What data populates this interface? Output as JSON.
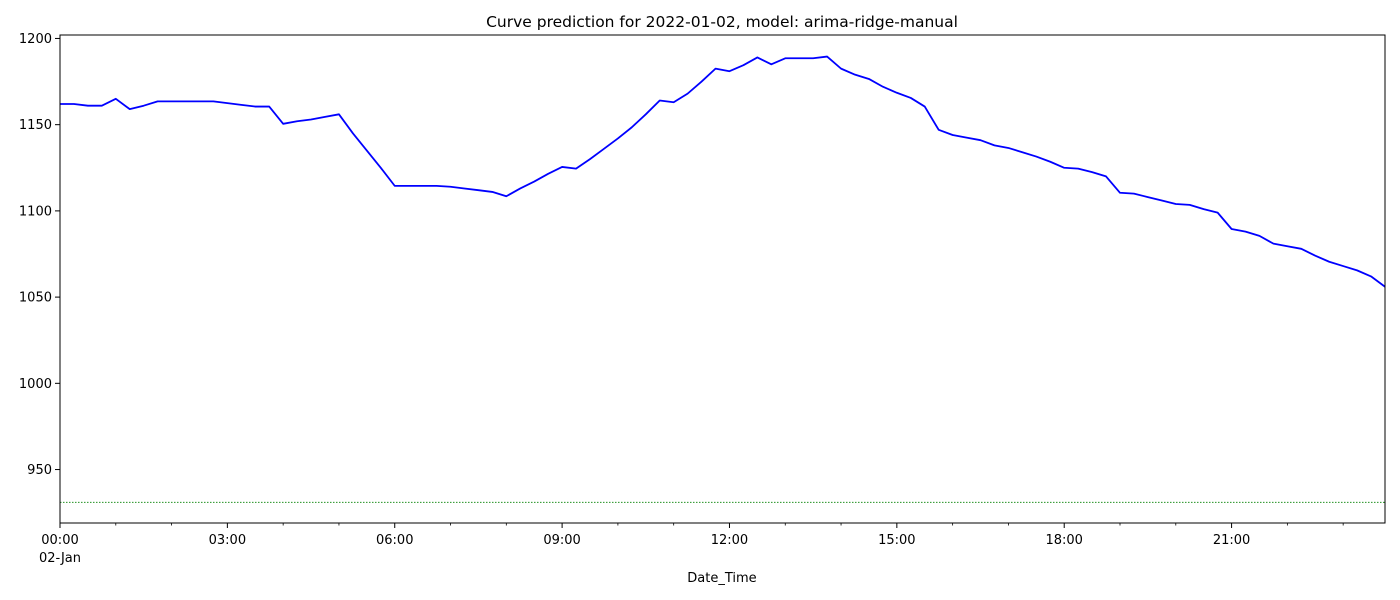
{
  "chart_data": {
    "type": "line",
    "title": "Curve prediction for 2022-01-02, model: arima-ridge-manual",
    "xlabel": "Date_Time",
    "ylabel": "",
    "date_label": "02-Jan",
    "x_ticks": [
      "00:00",
      "03:00",
      "06:00",
      "09:00",
      "12:00",
      "15:00",
      "18:00",
      "21:00"
    ],
    "y_ticks": [
      950,
      1000,
      1050,
      1100,
      1150,
      1200
    ],
    "xlim": [
      "2022-01-02 00:00",
      "2022-01-02 23:45"
    ],
    "ylim": [
      919,
      1202
    ],
    "grid": false,
    "series": [
      {
        "color": "#0000ff",
        "style": "solid",
        "x": [
          "00:00",
          "00:15",
          "00:30",
          "00:45",
          "01:00",
          "01:15",
          "01:30",
          "01:45",
          "02:00",
          "02:15",
          "02:30",
          "02:45",
          "03:00",
          "03:15",
          "03:30",
          "03:45",
          "04:00",
          "04:15",
          "04:30",
          "04:45",
          "05:00",
          "05:15",
          "05:30",
          "05:45",
          "06:00",
          "06:15",
          "06:30",
          "06:45",
          "07:00",
          "07:15",
          "07:30",
          "07:45",
          "08:00",
          "08:15",
          "08:30",
          "08:45",
          "09:00",
          "09:15",
          "09:30",
          "09:45",
          "10:00",
          "10:15",
          "10:30",
          "10:45",
          "11:00",
          "11:15",
          "11:30",
          "11:45",
          "12:00",
          "12:15",
          "12:30",
          "12:45",
          "13:00",
          "13:15",
          "13:30",
          "13:45",
          "14:00",
          "14:15",
          "14:30",
          "14:45",
          "15:00",
          "15:15",
          "15:30",
          "15:45",
          "16:00",
          "16:15",
          "16:30",
          "16:45",
          "17:00",
          "17:15",
          "17:30",
          "17:45",
          "18:00",
          "18:15",
          "18:30",
          "18:45",
          "19:00",
          "19:15",
          "19:30",
          "19:45",
          "20:00",
          "20:15",
          "20:30",
          "20:45",
          "21:00",
          "21:15",
          "21:30",
          "21:45",
          "22:00",
          "22:15",
          "22:30",
          "22:45",
          "23:00",
          "23:15",
          "23:30",
          "23:45"
        ],
        "values": [
          1162,
          1162,
          1161,
          1161,
          1165,
          1159,
          1161,
          1163.5,
          1163.5,
          1163.5,
          1163.5,
          1163.5,
          1162.5,
          1161.5,
          1160.5,
          1160.5,
          1150.5,
          1152,
          1153,
          1154.5,
          1156,
          1145,
          1135,
          1125,
          1114.5,
          1114.5,
          1114.5,
          1114.5,
          1114,
          1113,
          1112,
          1111,
          1108.5,
          1113,
          1117,
          1121.5,
          1125.5,
          1124.5,
          1130,
          1136,
          1142,
          1148.5,
          1156,
          1164,
          1163,
          1168,
          1175,
          1182.5,
          1181,
          1184.5,
          1189,
          1185,
          1188.5,
          1188.5,
          1188.5,
          1189.5,
          1182.5,
          1179,
          1176.5,
          1172,
          1168.5,
          1165.5,
          1160.5,
          1147,
          1144,
          1142.5,
          1141,
          1138,
          1136.5,
          1134,
          1131.5,
          1128.5,
          1125,
          1124.5,
          1122.5,
          1120,
          1110.5,
          1110,
          1108,
          1106,
          1104,
          1103.5,
          1101,
          1099,
          1089.5,
          1088,
          1085.5,
          1081,
          1079.5,
          1078,
          1074,
          1070.5,
          1068,
          1065.5,
          1062,
          1056
        ]
      },
      {
        "color": "#008000",
        "style": "dotted",
        "x": [
          "00:00",
          "23:45"
        ],
        "values": [
          931,
          931
        ]
      }
    ]
  }
}
